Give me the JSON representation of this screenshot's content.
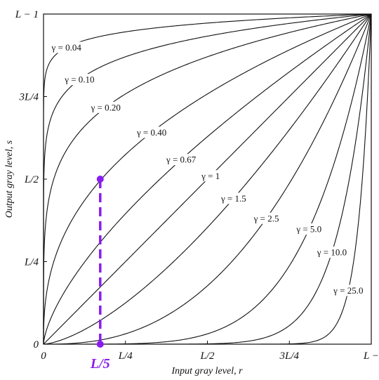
{
  "chart_data": {
    "type": "line",
    "title": "",
    "xlabel": "Input gray level, r",
    "ylabel": "Output gray level, s",
    "xlim": [
      0,
      1
    ],
    "ylim": [
      0,
      1
    ],
    "x_ticks": [
      {
        "value": 0,
        "label": "0"
      },
      {
        "value": 0.25,
        "label": "L/4"
      },
      {
        "value": 0.5,
        "label": "L/2"
      },
      {
        "value": 0.75,
        "label": "3L/4"
      },
      {
        "value": 1,
        "label": "L −"
      }
    ],
    "y_ticks": [
      {
        "value": 0,
        "label": "0"
      },
      {
        "value": 0.25,
        "label": "L/4"
      },
      {
        "value": 0.5,
        "label": "L/2"
      },
      {
        "value": 0.75,
        "label": "3L/4"
      },
      {
        "value": 1,
        "label": "L − 1"
      }
    ],
    "curve_formula": "s = r^gamma (normalized to L-1)",
    "series": [
      {
        "gamma": 0.04,
        "label": "γ = 0.04",
        "label_at": 0.07
      },
      {
        "gamma": 0.1,
        "label": "γ = 0.10",
        "label_at": 0.11
      },
      {
        "gamma": 0.2,
        "label": "γ = 0.20",
        "label_at": 0.19
      },
      {
        "gamma": 0.4,
        "label": "γ = 0.40",
        "label_at": 0.33
      },
      {
        "gamma": 0.67,
        "label": "γ = 0.67",
        "label_at": 0.42
      },
      {
        "gamma": 1.0,
        "label": "γ = 1",
        "label_at": 0.51
      },
      {
        "gamma": 1.5,
        "label": "γ = 1.5",
        "label_at": 0.58
      },
      {
        "gamma": 2.5,
        "label": "γ = 2.5",
        "label_at": 0.68
      },
      {
        "gamma": 5.0,
        "label": "γ = 5.0",
        "label_at": 0.81
      },
      {
        "gamma": 10.0,
        "label": "γ = 10.0",
        "label_at": 0.88
      },
      {
        "gamma": 25.0,
        "label": "γ = 25.0",
        "label_at": 0.93
      }
    ],
    "annotation": {
      "label": "L/5",
      "x": 0.173,
      "y_top": 0.5,
      "color": "#8a1cf0"
    }
  }
}
